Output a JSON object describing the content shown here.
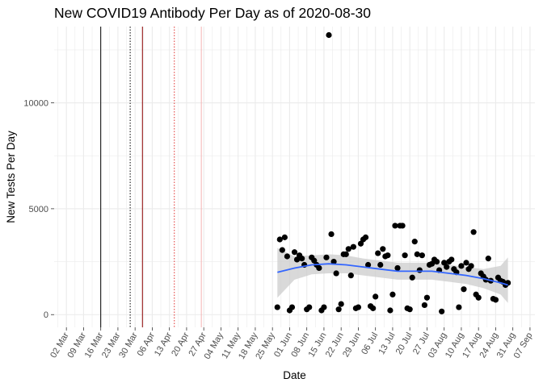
{
  "chart_data": {
    "type": "scatter",
    "title": "New COVID19 Antibody Per Day as of 2020-08-30",
    "xlabel": "Date",
    "ylabel": "New Tests Per Day",
    "xlim": [
      "2020-02-26",
      "2020-09-09"
    ],
    "ylim": [
      -600,
      13600
    ],
    "x_tick_labels": [
      "02 Mar",
      "09 Mar",
      "16 Mar",
      "23 Mar",
      "30 Mar",
      "06 Apr",
      "13 Apr",
      "20 Apr",
      "27 Apr",
      "04 May",
      "11 May",
      "18 May",
      "25 May",
      "01 Jun",
      "08 Jun",
      "15 Jun",
      "22 Jun",
      "29 Jun",
      "06 Jul",
      "13 Jul",
      "20 Jul",
      "27 Jul",
      "03 Aug",
      "10 Aug",
      "17 Aug",
      "24 Aug",
      "31 Aug",
      "07 Sep"
    ],
    "x_tick_dates": [
      "2020-03-02",
      "2020-03-09",
      "2020-03-16",
      "2020-03-23",
      "2020-03-30",
      "2020-04-06",
      "2020-04-13",
      "2020-04-20",
      "2020-04-27",
      "2020-05-04",
      "2020-05-11",
      "2020-05-18",
      "2020-05-25",
      "2020-06-01",
      "2020-06-08",
      "2020-06-15",
      "2020-06-22",
      "2020-06-29",
      "2020-07-06",
      "2020-07-13",
      "2020-07-20",
      "2020-07-27",
      "2020-08-03",
      "2020-08-10",
      "2020-08-17",
      "2020-08-24",
      "2020-08-31",
      "2020-09-07"
    ],
    "y_ticks": [
      0,
      5000,
      10000
    ],
    "y_tick_labels": [
      "0",
      "5000",
      "10000"
    ],
    "grid": true,
    "reference_lines": [
      {
        "date": "2020-03-16",
        "color": "#000000",
        "style": "solid"
      },
      {
        "date": "2020-03-28",
        "color": "#000000",
        "style": "dotted"
      },
      {
        "date": "2020-04-02",
        "color": "#8b0000",
        "style": "solid"
      },
      {
        "date": "2020-04-15",
        "color": "#e0302f",
        "style": "dotted"
      },
      {
        "date": "2020-04-26",
        "color": "#f4b3b3",
        "style": "solid"
      }
    ],
    "points": [
      {
        "x": "2020-05-27",
        "y": 350
      },
      {
        "x": "2020-05-28",
        "y": 3550
      },
      {
        "x": "2020-05-29",
        "y": 3050
      },
      {
        "x": "2020-05-30",
        "y": 3650
      },
      {
        "x": "2020-05-31",
        "y": 2750
      },
      {
        "x": "2020-06-01",
        "y": 200
      },
      {
        "x": "2020-06-02",
        "y": 350
      },
      {
        "x": "2020-06-03",
        "y": 2950
      },
      {
        "x": "2020-06-04",
        "y": 2600
      },
      {
        "x": "2020-06-05",
        "y": 2800
      },
      {
        "x": "2020-06-06",
        "y": 2650
      },
      {
        "x": "2020-06-07",
        "y": 2350
      },
      {
        "x": "2020-06-08",
        "y": 250
      },
      {
        "x": "2020-06-09",
        "y": 350
      },
      {
        "x": "2020-06-10",
        "y": 2700
      },
      {
        "x": "2020-06-11",
        "y": 2550
      },
      {
        "x": "2020-06-12",
        "y": 2350
      },
      {
        "x": "2020-06-13",
        "y": 2200
      },
      {
        "x": "2020-06-14",
        "y": 200
      },
      {
        "x": "2020-06-15",
        "y": 350
      },
      {
        "x": "2020-06-16",
        "y": 2700
      },
      {
        "x": "2020-06-17",
        "y": 13200
      },
      {
        "x": "2020-06-18",
        "y": 3800
      },
      {
        "x": "2020-06-19",
        "y": 2500
      },
      {
        "x": "2020-06-20",
        "y": 1950
      },
      {
        "x": "2020-06-21",
        "y": 250
      },
      {
        "x": "2020-06-22",
        "y": 500
      },
      {
        "x": "2020-06-23",
        "y": 2850
      },
      {
        "x": "2020-06-24",
        "y": 2850
      },
      {
        "x": "2020-06-25",
        "y": 3100
      },
      {
        "x": "2020-06-26",
        "y": 1850
      },
      {
        "x": "2020-06-27",
        "y": 3200
      },
      {
        "x": "2020-06-28",
        "y": 300
      },
      {
        "x": "2020-06-29",
        "y": 350
      },
      {
        "x": "2020-06-30",
        "y": 3350
      },
      {
        "x": "2020-07-01",
        "y": 3550
      },
      {
        "x": "2020-07-02",
        "y": 3650
      },
      {
        "x": "2020-07-03",
        "y": 2350
      },
      {
        "x": "2020-07-04",
        "y": 400
      },
      {
        "x": "2020-07-05",
        "y": 300
      },
      {
        "x": "2020-07-06",
        "y": 850
      },
      {
        "x": "2020-07-07",
        "y": 2900
      },
      {
        "x": "2020-07-08",
        "y": 2350
      },
      {
        "x": "2020-07-09",
        "y": 3100
      },
      {
        "x": "2020-07-10",
        "y": 2750
      },
      {
        "x": "2020-07-11",
        "y": 2800
      },
      {
        "x": "2020-07-12",
        "y": 200
      },
      {
        "x": "2020-07-13",
        "y": 950
      },
      {
        "x": "2020-07-14",
        "y": 4200
      },
      {
        "x": "2020-07-15",
        "y": 2200
      },
      {
        "x": "2020-07-16",
        "y": 4200
      },
      {
        "x": "2020-07-17",
        "y": 4200
      },
      {
        "x": "2020-07-18",
        "y": 2800
      },
      {
        "x": "2020-07-19",
        "y": 300
      },
      {
        "x": "2020-07-20",
        "y": 250
      },
      {
        "x": "2020-07-21",
        "y": 1750
      },
      {
        "x": "2020-07-22",
        "y": 3450
      },
      {
        "x": "2020-07-23",
        "y": 2850
      },
      {
        "x": "2020-07-24",
        "y": 2100
      },
      {
        "x": "2020-07-25",
        "y": 2800
      },
      {
        "x": "2020-07-26",
        "y": 450
      },
      {
        "x": "2020-07-27",
        "y": 800
      },
      {
        "x": "2020-07-28",
        "y": 2350
      },
      {
        "x": "2020-07-29",
        "y": 2400
      },
      {
        "x": "2020-07-30",
        "y": 2600
      },
      {
        "x": "2020-07-31",
        "y": 2500
      },
      {
        "x": "2020-08-01",
        "y": 2100
      },
      {
        "x": "2020-08-02",
        "y": 150
      },
      {
        "x": "2020-08-03",
        "y": 2450
      },
      {
        "x": "2020-08-04",
        "y": 2250
      },
      {
        "x": "2020-08-05",
        "y": 2500
      },
      {
        "x": "2020-08-06",
        "y": 2600
      },
      {
        "x": "2020-08-07",
        "y": 2150
      },
      {
        "x": "2020-08-08",
        "y": 2000
      },
      {
        "x": "2020-08-09",
        "y": 350
      },
      {
        "x": "2020-08-10",
        "y": 2300
      },
      {
        "x": "2020-08-11",
        "y": 1200
      },
      {
        "x": "2020-08-12",
        "y": 2450
      },
      {
        "x": "2020-08-13",
        "y": 2150
      },
      {
        "x": "2020-08-14",
        "y": 2300
      },
      {
        "x": "2020-08-15",
        "y": 3900
      },
      {
        "x": "2020-08-16",
        "y": 950
      },
      {
        "x": "2020-08-17",
        "y": 800
      },
      {
        "x": "2020-08-18",
        "y": 1950
      },
      {
        "x": "2020-08-19",
        "y": 1800
      },
      {
        "x": "2020-08-20",
        "y": 1650
      },
      {
        "x": "2020-08-21",
        "y": 2650
      },
      {
        "x": "2020-08-22",
        "y": 1600
      },
      {
        "x": "2020-08-23",
        "y": 750
      },
      {
        "x": "2020-08-24",
        "y": 700
      },
      {
        "x": "2020-08-25",
        "y": 1750
      },
      {
        "x": "2020-08-26",
        "y": 1600
      },
      {
        "x": "2020-08-27",
        "y": 1550
      },
      {
        "x": "2020-08-28",
        "y": 1400
      },
      {
        "x": "2020-08-29",
        "y": 1500
      }
    ],
    "smooth": [
      {
        "x": "2020-05-27",
        "y": 2000,
        "lo": 800,
        "hi": 3150
      },
      {
        "x": "2020-06-03",
        "y": 2200,
        "lo": 1650,
        "hi": 2750
      },
      {
        "x": "2020-06-10",
        "y": 2350,
        "lo": 1900,
        "hi": 2800
      },
      {
        "x": "2020-06-17",
        "y": 2400,
        "lo": 1950,
        "hi": 2850
      },
      {
        "x": "2020-06-24",
        "y": 2350,
        "lo": 1950,
        "hi": 2800
      },
      {
        "x": "2020-07-01",
        "y": 2250,
        "lo": 1850,
        "hi": 2650
      },
      {
        "x": "2020-07-08",
        "y": 2150,
        "lo": 1750,
        "hi": 2550
      },
      {
        "x": "2020-07-15",
        "y": 2050,
        "lo": 1650,
        "hi": 2450
      },
      {
        "x": "2020-07-22",
        "y": 2050,
        "lo": 1650,
        "hi": 2450
      },
      {
        "x": "2020-07-29",
        "y": 2050,
        "lo": 1650,
        "hi": 2450
      },
      {
        "x": "2020-08-05",
        "y": 1950,
        "lo": 1550,
        "hi": 2350
      },
      {
        "x": "2020-08-12",
        "y": 1850,
        "lo": 1450,
        "hi": 2250
      },
      {
        "x": "2020-08-19",
        "y": 1700,
        "lo": 1250,
        "hi": 2150
      },
      {
        "x": "2020-08-26",
        "y": 1500,
        "lo": 950,
        "hi": 2300
      },
      {
        "x": "2020-08-29",
        "y": 1400,
        "lo": 550,
        "hi": 2700
      }
    ],
    "colors": {
      "points": "#000000",
      "smooth": "#3366ff",
      "ribbon": "#cccccc",
      "grid": "#ebebeb"
    }
  }
}
